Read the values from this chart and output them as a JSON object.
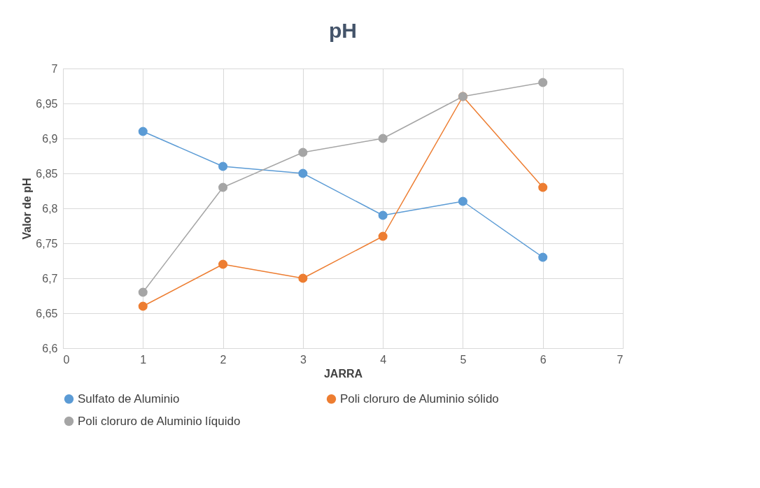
{
  "chart_data": {
    "type": "line",
    "title": "pH",
    "xlabel": "JARRA",
    "ylabel": "Valor de pH",
    "x": [
      1,
      2,
      3,
      4,
      5,
      6
    ],
    "series": [
      {
        "name": "Sulfato de Aluminio",
        "color": "#5b9bd5",
        "values": [
          6.91,
          6.86,
          6.85,
          6.79,
          6.81,
          6.73
        ]
      },
      {
        "name": "Poli cloruro de Aluminio sólido",
        "color": "#ed7d31",
        "values": [
          6.66,
          6.72,
          6.7,
          6.76,
          6.96,
          6.83
        ]
      },
      {
        "name": "Poli cloruro de Aluminio líquido",
        "color": "#a5a5a5",
        "values": [
          6.68,
          6.83,
          6.88,
          6.9,
          6.96,
          6.98
        ]
      }
    ],
    "xlim": [
      0,
      7
    ],
    "xticks": [
      0,
      1,
      2,
      3,
      4,
      5,
      6,
      7
    ],
    "ylim": [
      6.6,
      7
    ],
    "yticks": [
      {
        "value": 6.6,
        "label": "6,6"
      },
      {
        "value": 6.65,
        "label": "6,65"
      },
      {
        "value": 6.7,
        "label": "6,7"
      },
      {
        "value": 6.75,
        "label": "6,75"
      },
      {
        "value": 6.8,
        "label": "6,8"
      },
      {
        "value": 6.85,
        "label": "6,85"
      },
      {
        "value": 6.9,
        "label": "6,9"
      },
      {
        "value": 6.95,
        "label": "6,95"
      },
      7
    ],
    "grid": true,
    "legend": "bottom",
    "marker": "circle",
    "line_style": "solid"
  }
}
